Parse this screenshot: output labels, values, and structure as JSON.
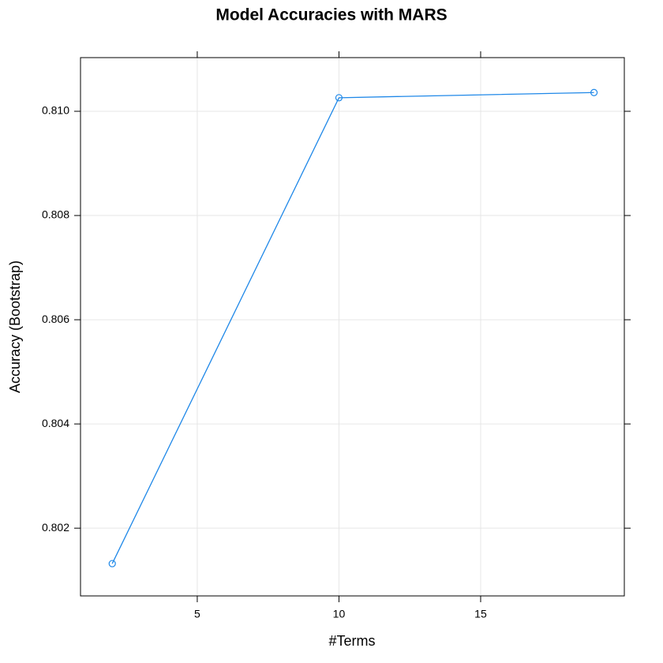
{
  "chart_data": {
    "type": "line",
    "title": "Model Accuracies with MARS",
    "x_label": "#Terms",
    "y_label": "Accuracy (Bootstrap)",
    "x": [
      2,
      10,
      19
    ],
    "series": [
      {
        "name": "Accuracy",
        "color": "#1f88e8",
        "values": [
          0.80132,
          0.81026,
          0.81036
        ]
      }
    ],
    "xlim": [
      0.88,
      20.07
    ],
    "xticks": [
      5,
      10,
      15
    ],
    "ylim": [
      0.8007,
      0.81103
    ],
    "yticks": [
      {
        "value": 0.802,
        "label": "0.802"
      },
      {
        "value": 0.804,
        "label": "0.804"
      },
      {
        "value": 0.806,
        "label": "0.806"
      },
      {
        "value": 0.808,
        "label": "0.808"
      },
      {
        "value": 0.81,
        "label": "0.810"
      }
    ],
    "grid": true
  }
}
